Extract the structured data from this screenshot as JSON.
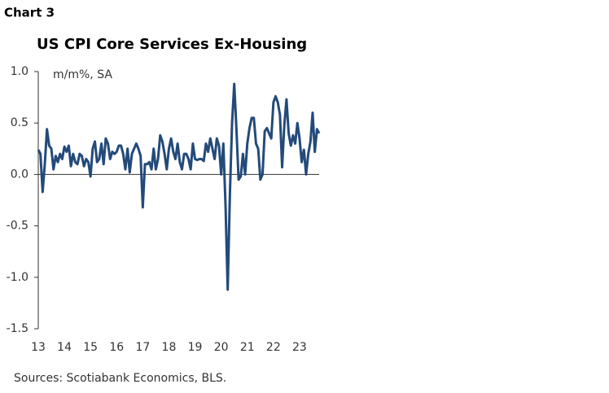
{
  "chart_data": {
    "type": "line",
    "chart_label": "Chart 3",
    "title": "US CPI Core Services Ex-Housing",
    "y_label": "m/m%, SA",
    "source": "Sources: Scotiabank Economics, BLS.",
    "color": "#234a7a",
    "xlim": [
      13,
      23.75
    ],
    "xticks": [
      13,
      14,
      15,
      16,
      17,
      18,
      19,
      20,
      21,
      22,
      23
    ],
    "ylim": [
      -1.5,
      1
    ],
    "yticks": [
      {
        "value": 1,
        "label": "1.0"
      },
      0.5,
      {
        "value": 0,
        "label": "0.0"
      },
      -0.5,
      {
        "value": -1,
        "label": "-1.0"
      },
      -1.5
    ],
    "x": [
      13,
      13.083,
      13.167,
      13.25,
      13.333,
      13.417,
      13.5,
      13.583,
      13.667,
      13.75,
      13.833,
      13.917,
      14,
      14.083,
      14.167,
      14.25,
      14.333,
      14.417,
      14.5,
      14.583,
      14.667,
      14.75,
      14.833,
      14.917,
      15,
      15.083,
      15.167,
      15.25,
      15.333,
      15.417,
      15.5,
      15.583,
      15.667,
      15.75,
      15.833,
      15.917,
      16,
      16.083,
      16.167,
      16.25,
      16.333,
      16.417,
      16.5,
      16.583,
      16.667,
      16.75,
      16.833,
      16.917,
      17,
      17.083,
      17.167,
      17.25,
      17.333,
      17.417,
      17.5,
      17.583,
      17.667,
      17.75,
      17.833,
      17.917,
      18,
      18.083,
      18.167,
      18.25,
      18.333,
      18.417,
      18.5,
      18.583,
      18.667,
      18.75,
      18.833,
      18.917,
      19,
      19.083,
      19.167,
      19.25,
      19.333,
      19.417,
      19.5,
      19.583,
      19.667,
      19.75,
      19.833,
      19.917,
      20,
      20.083,
      20.167,
      20.25,
      20.333,
      20.417,
      20.5,
      20.583,
      20.667,
      20.75,
      20.833,
      20.917,
      21,
      21.083,
      21.167,
      21.25,
      21.333,
      21.417,
      21.5,
      21.583,
      21.667,
      21.75,
      21.833,
      21.917,
      22,
      22.083,
      22.167,
      22.25,
      22.333,
      22.417,
      22.5,
      22.583,
      22.667,
      22.75,
      22.833,
      22.917,
      23,
      23.083,
      23.167,
      23.25,
      23.333,
      23.417,
      23.5,
      23.583,
      23.667,
      23.75
    ],
    "values": [
      0.24,
      0.2,
      -0.17,
      0.1,
      0.44,
      0.28,
      0.25,
      0.05,
      0.18,
      0.12,
      0.2,
      0.15,
      0.27,
      0.22,
      0.28,
      0.08,
      0.2,
      0.12,
      0.1,
      0.2,
      0.18,
      0.08,
      0.15,
      0.12,
      -0.02,
      0.25,
      0.32,
      0.12,
      0.15,
      0.3,
      0.1,
      0.35,
      0.3,
      0.15,
      0.22,
      0.2,
      0.22,
      0.28,
      0.28,
      0.2,
      0.05,
      0.25,
      0.02,
      0.2,
      0.25,
      0.3,
      0.25,
      0.18,
      -0.32,
      0.1,
      0.1,
      0.12,
      0.05,
      0.25,
      0.05,
      0.15,
      0.38,
      0.32,
      0.2,
      0.05,
      0.25,
      0.35,
      0.22,
      0.15,
      0.3,
      0.12,
      0.05,
      0.2,
      0.2,
      0.15,
      0.05,
      0.3,
      0.15,
      0.14,
      0.15,
      0.15,
      0.13,
      0.3,
      0.22,
      0.35,
      0.25,
      0.15,
      0.35,
      0.28,
      0.0,
      0.3,
      -0.3,
      -1.12,
      -0.2,
      0.5,
      0.88,
      0.45,
      -0.05,
      -0.02,
      0.2,
      0.0,
      0.3,
      0.45,
      0.55,
      0.55,
      0.3,
      0.25,
      -0.05,
      0.0,
      0.42,
      0.45,
      0.4,
      0.35,
      0.7,
      0.76,
      0.7,
      0.58,
      0.07,
      0.48,
      0.73,
      0.4,
      0.28,
      0.38,
      0.3,
      0.5,
      0.35,
      0.12,
      0.24,
      0.0,
      0.2,
      0.32,
      0.6,
      0.22,
      0.44,
      0.4
    ]
  }
}
